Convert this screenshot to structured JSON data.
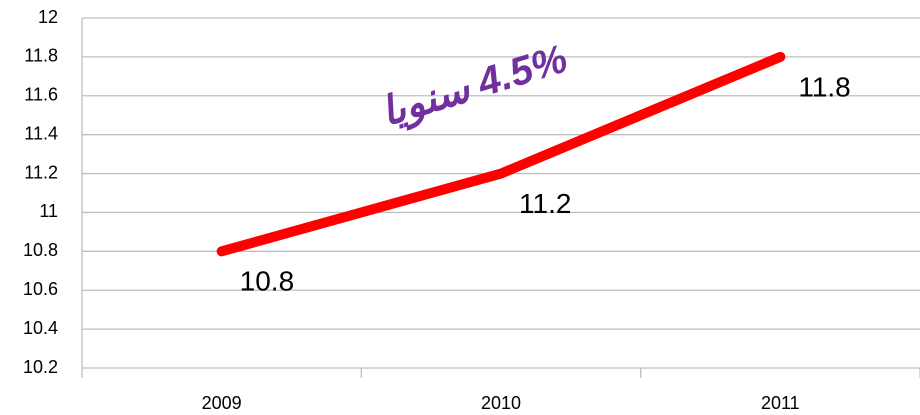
{
  "chart_data": {
    "type": "line",
    "categories": [
      "2009",
      "2010",
      "2011"
    ],
    "series": [
      {
        "name": null,
        "color": "#ff0000",
        "values": [
          10.8,
          11.2,
          11.8
        ]
      }
    ],
    "ylim": [
      10.2,
      12
    ],
    "yticks": [
      10.2,
      10.4,
      10.6,
      10.8,
      11,
      11.2,
      11.4,
      11.6,
      11.8,
      12
    ],
    "grid": true,
    "annotation": "4.5% سنويا",
    "annotation_color": "#7030a0"
  }
}
